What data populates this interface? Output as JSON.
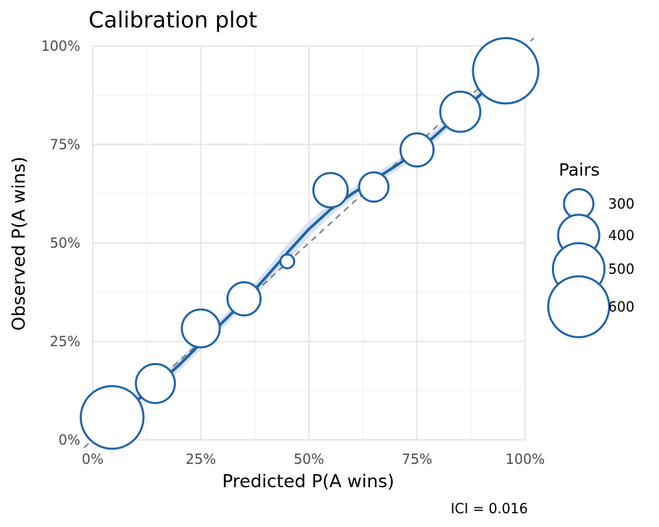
{
  "chart_data": {
    "type": "scatter",
    "title": "Calibration plot",
    "xlabel": "Predicted P(A wins)",
    "ylabel": "Observed P(A wins)",
    "xlim": [
      0,
      1
    ],
    "ylim": [
      0,
      1
    ],
    "x_ticks": [
      0,
      0.25,
      0.5,
      0.75,
      1
    ],
    "x_tick_labels": [
      "0%",
      "25%",
      "50%",
      "75%",
      "100%"
    ],
    "y_ticks": [
      0,
      0.25,
      0.5,
      0.75,
      1
    ],
    "y_tick_labels": [
      "0%",
      "25%",
      "50%",
      "75%",
      "100%"
    ],
    "grid": true,
    "reference_line": "y = x",
    "points": [
      {
        "x": 0.045,
        "y": 0.057,
        "pairs": 620
      },
      {
        "x": 0.145,
        "y": 0.143,
        "pairs": 380
      },
      {
        "x": 0.25,
        "y": 0.283,
        "pairs": 370
      },
      {
        "x": 0.35,
        "y": 0.358,
        "pairs": 330
      },
      {
        "x": 0.45,
        "y": 0.453,
        "pairs": 190
      },
      {
        "x": 0.55,
        "y": 0.634,
        "pairs": 340
      },
      {
        "x": 0.65,
        "y": 0.642,
        "pairs": 300
      },
      {
        "x": 0.75,
        "y": 0.736,
        "pairs": 330
      },
      {
        "x": 0.85,
        "y": 0.833,
        "pairs": 390
      },
      {
        "x": 0.955,
        "y": 0.937,
        "pairs": 650
      }
    ],
    "smooth": {
      "x": [
        0.0,
        0.05,
        0.1,
        0.15,
        0.2,
        0.25,
        0.3,
        0.35,
        0.4,
        0.45,
        0.5,
        0.55,
        0.6,
        0.65,
        0.7,
        0.75,
        0.8,
        0.85,
        0.9,
        0.95,
        1.0
      ],
      "y": [
        0.01,
        0.055,
        0.098,
        0.142,
        0.19,
        0.245,
        0.298,
        0.352,
        0.412,
        0.475,
        0.535,
        0.585,
        0.625,
        0.66,
        0.695,
        0.732,
        0.78,
        0.83,
        0.88,
        0.93,
        0.985
      ],
      "band_halfwidth": [
        0.016,
        0.014,
        0.014,
        0.014,
        0.015,
        0.015,
        0.014,
        0.014,
        0.018,
        0.022,
        0.02,
        0.016,
        0.014,
        0.013,
        0.013,
        0.013,
        0.014,
        0.014,
        0.014,
        0.014,
        0.016
      ]
    },
    "legend": {
      "title": "Pairs",
      "position": "right",
      "entries": [
        {
          "label": "300",
          "value": 300
        },
        {
          "label": "400",
          "value": 400
        },
        {
          "label": "500",
          "value": 500
        },
        {
          "label": "600",
          "value": 600
        }
      ]
    },
    "caption": "ICI = 0.016",
    "colors": {
      "point_stroke": "#2163a8",
      "line": "#2163a8",
      "band": "#d6e3f3",
      "reference": "#7f7f7f",
      "grid_major": "#e6e6e6",
      "grid_minor": "#f2f2f2"
    }
  }
}
